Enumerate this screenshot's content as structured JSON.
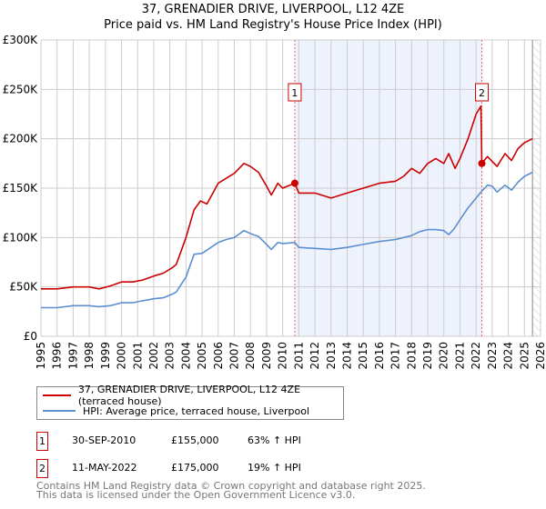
{
  "chart_data": {
    "type": "line",
    "title": "37, GRENADIER DRIVE, LIVERPOOL, L12 4ZE",
    "subtitle": "Price paid vs. HM Land Registry's House Price Index (HPI)",
    "xlim": [
      1995,
      2026
    ],
    "ylim": [
      0,
      300000
    ],
    "yticks": [
      0,
      50000,
      100000,
      150000,
      200000,
      250000,
      300000
    ],
    "ytick_labels": [
      "£0",
      "£50K",
      "£100K",
      "£150K",
      "£200K",
      "£250K",
      "£300K"
    ],
    "xticks": [
      1995,
      1996,
      1997,
      1998,
      1999,
      2000,
      2001,
      2002,
      2003,
      2004,
      2005,
      2006,
      2007,
      2008,
      2009,
      2010,
      2011,
      2012,
      2013,
      2014,
      2015,
      2016,
      2017,
      2018,
      2019,
      2020,
      2021,
      2022,
      2023,
      2024,
      2025,
      2026
    ],
    "grid": true,
    "shaded_range": [
      2010.75,
      2022.36
    ],
    "hatched_from": 2025.5,
    "series": [
      {
        "name": "37, GRENADIER DRIVE, LIVERPOOL, L12 4ZE (terraced house)",
        "color": "#cc0000",
        "x": [
          1995,
          1996,
          1997,
          1998,
          1998.6,
          1999.3,
          2000,
          2000.7,
          2001.3,
          2002,
          2002.6,
          2003.2,
          2003.4,
          2004,
          2004.5,
          2004.9,
          2005.3,
          2006,
          2006.5,
          2007,
          2007.6,
          2008,
          2008.5,
          2009,
          2009.3,
          2009.7,
          2010,
          2010.75,
          2011,
          2012,
          2013,
          2014,
          2015,
          2016,
          2017,
          2017.5,
          2018,
          2018.5,
          2019,
          2019.5,
          2020,
          2020.3,
          2020.7,
          2021,
          2021.5,
          2022,
          2022.3,
          2022.36,
          2022.7,
          2023.3,
          2023.8,
          2024.2,
          2024.6,
          2025,
          2025.5
        ],
        "y": [
          48000,
          48000,
          50000,
          50000,
          48000,
          51000,
          55000,
          55000,
          57000,
          61000,
          64000,
          70000,
          73000,
          100000,
          128000,
          137000,
          134000,
          155000,
          160000,
          165000,
          175000,
          172000,
          166000,
          152000,
          143000,
          155000,
          150000,
          155000,
          145000,
          145000,
          140000,
          145000,
          150000,
          155000,
          157000,
          162000,
          170000,
          165000,
          175000,
          180000,
          175000,
          185000,
          170000,
          180000,
          200000,
          225000,
          233000,
          175000,
          182000,
          172000,
          185000,
          178000,
          190000,
          196000,
          200000
        ]
      },
      {
        "name": "HPI: Average price, terraced house, Liverpool",
        "color": "#5b8fd0",
        "x": [
          1995,
          1996,
          1997,
          1998,
          1998.6,
          1999.3,
          2000,
          2000.7,
          2001.3,
          2002,
          2002.6,
          2003.2,
          2003.4,
          2004,
          2004.5,
          2005,
          2006,
          2006.5,
          2007,
          2007.6,
          2008,
          2008.5,
          2009,
          2009.3,
          2009.7,
          2010,
          2010.75,
          2011,
          2012,
          2013,
          2014,
          2015,
          2016,
          2017,
          2018,
          2018.5,
          2019,
          2019.5,
          2020,
          2020.3,
          2020.6,
          2021,
          2021.5,
          2022,
          2022.36,
          2022.7,
          2023,
          2023.3,
          2023.8,
          2024.2,
          2024.6,
          2025,
          2025.5
        ],
        "y": [
          29000,
          29000,
          31000,
          31000,
          30000,
          31000,
          34000,
          34000,
          36000,
          38000,
          39000,
          43000,
          45000,
          60000,
          83000,
          84000,
          95000,
          98000,
          100000,
          107000,
          104000,
          101000,
          93000,
          88000,
          95000,
          94000,
          95000,
          90000,
          89000,
          88000,
          90000,
          93000,
          96000,
          98000,
          102000,
          106000,
          108000,
          108000,
          107000,
          103000,
          108000,
          118000,
          130000,
          140000,
          147000,
          153000,
          152000,
          146000,
          153000,
          148000,
          156000,
          162000,
          166000
        ]
      }
    ],
    "annotations": [
      {
        "label": "1",
        "x": 2010.75,
        "y": 155000
      },
      {
        "label": "2",
        "x": 2022.36,
        "y": 175000
      }
    ]
  },
  "transactions": [
    {
      "num": "1",
      "date": "30-SEP-2010",
      "price": "£155,000",
      "hpi": "63% ↑ HPI"
    },
    {
      "num": "2",
      "date": "11-MAY-2022",
      "price": "£175,000",
      "hpi": "19% ↑ HPI"
    }
  ],
  "footer": {
    "line1": "Contains HM Land Registry data © Crown copyright and database right 2025.",
    "line2": "This data is licensed under the Open Government Licence v3.0."
  }
}
